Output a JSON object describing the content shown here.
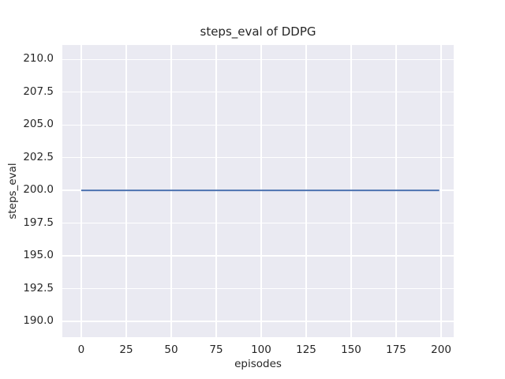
{
  "chart_data": {
    "type": "line",
    "title": "steps_eval of DDPG",
    "xlabel": "episodes",
    "ylabel": "steps_eval",
    "x_ticks": [
      0,
      25,
      50,
      75,
      100,
      125,
      150,
      175,
      200
    ],
    "x_tick_labels": [
      "0",
      "25",
      "50",
      "75",
      "100",
      "125",
      "150",
      "175",
      "200"
    ],
    "y_ticks": [
      210.0,
      207.5,
      205.0,
      202.5,
      200.0,
      197.5,
      195.0,
      192.5,
      190.0
    ],
    "y_tick_labels": [
      "210.0",
      "207.5",
      "205.0",
      "202.5",
      "200.0",
      "197.5",
      "195.0",
      "192.5",
      "190.0"
    ],
    "xlim": [
      -10.5,
      207
    ],
    "ylim": [
      188.8,
      211.1
    ],
    "grid": true,
    "legend_position": "none",
    "series": [
      {
        "name": "DDPG steps_eval",
        "x": [
          0,
          199
        ],
        "y": [
          200,
          200
        ],
        "color": "#4c72b0",
        "description": "constant horizontal line at steps_eval = 200 from episode 0 to episode 199"
      }
    ]
  },
  "style": {
    "figure_background": "#ffffff",
    "axes_background": "#eaeaf2",
    "grid_color": "#ffffff",
    "text_color": "#262626",
    "line_color": "#4c72b0"
  }
}
